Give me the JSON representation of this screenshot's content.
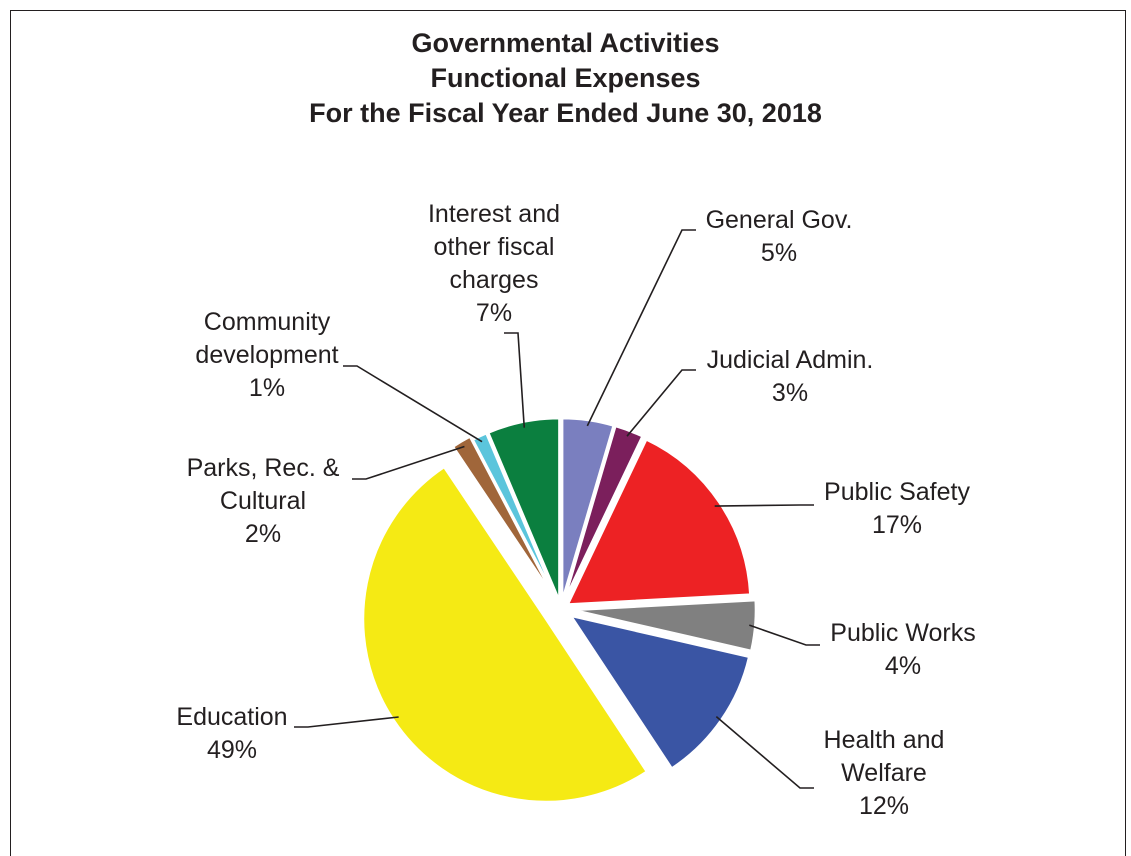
{
  "chart_data": {
    "type": "pie",
    "title": [
      "Governmental Activities",
      "Functional Expenses",
      "For the Fiscal Year Ended June 30, 2018"
    ],
    "slices": [
      {
        "label": [
          "General Gov."
        ],
        "percent": "5%",
        "value": 4.5,
        "color": "#7a7fbf"
      },
      {
        "label": [
          "Judicial Admin."
        ],
        "percent": "3%",
        "value": 2.5,
        "color": "#7b1f5c"
      },
      {
        "label": [
          "Public Safety"
        ],
        "percent": "17%",
        "value": 16.9,
        "color": "#ed2224"
      },
      {
        "label": [
          "Public Works"
        ],
        "percent": "4%",
        "value": 4.4,
        "color": "#808080"
      },
      {
        "label": [
          "Health and",
          "Welfare"
        ],
        "percent": "12%",
        "value": 12.0,
        "color": "#3a55a4"
      },
      {
        "label": [
          "Education"
        ],
        "percent": "49%",
        "value": 49.4,
        "color": "#f5ea14"
      },
      {
        "label": [
          "Parks, Rec. &",
          "Cultural"
        ],
        "percent": "2%",
        "value": 1.7,
        "color": "#a0663a"
      },
      {
        "label": [
          "Community",
          "development"
        ],
        "percent": "1%",
        "value": 1.3,
        "color": "#5bc5dc"
      },
      {
        "label": [
          "Interest and",
          "other fiscal",
          "charges"
        ],
        "percent": "7%",
        "value": 6.3,
        "color": "#0b7f3f"
      }
    ],
    "legend": "none",
    "grid": false
  }
}
